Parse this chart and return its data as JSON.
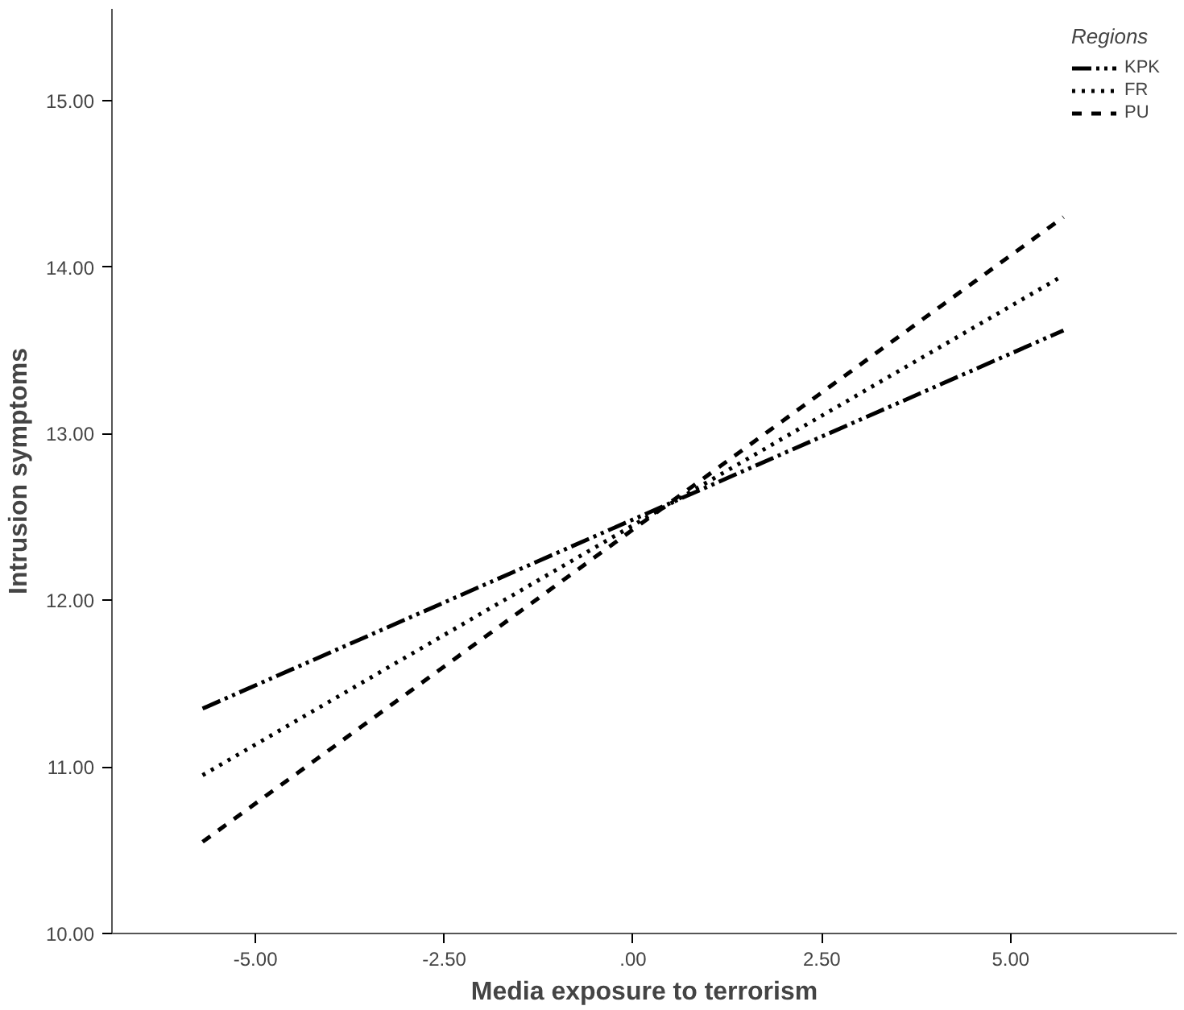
{
  "chart_data": {
    "type": "line",
    "xlabel": "Media exposure to terrorism",
    "ylabel": "Intrusion symptoms",
    "legend_title": "Regions",
    "legend": "top right",
    "x": [
      -5.7,
      5.7
    ],
    "series": [
      {
        "name": "KPK",
        "color": "#000000",
        "values": [
          11.35,
          13.62
        ],
        "line_style": "dashdot"
      },
      {
        "name": "FR",
        "color": "#000000",
        "values": [
          10.95,
          13.95
        ],
        "line_style": "dotted"
      },
      {
        "name": "PU",
        "color": "#000000",
        "values": [
          10.55,
          14.3
        ],
        "line_style": "dashed"
      }
    ],
    "xlim": [
      -6.9,
      7.2
    ],
    "ylim": [
      10,
      15.55
    ],
    "xticks": [
      {
        "value": -5,
        "label": "-5.00"
      },
      {
        "value": -2.5,
        "label": "-2.50"
      },
      {
        "value": 0,
        "label": ".00"
      },
      {
        "value": 2.5,
        "label": "2.50"
      },
      {
        "value": 5,
        "label": "5.00"
      }
    ],
    "yticks": [
      {
        "value": 10,
        "label": "10.00"
      },
      {
        "value": 11,
        "label": "11.00"
      },
      {
        "value": 12,
        "label": "12.00"
      },
      {
        "value": 13,
        "label": "13.00"
      },
      {
        "value": 14,
        "label": "14.00"
      },
      {
        "value": 15,
        "label": "15.00"
      }
    ],
    "grid": false,
    "marker": "none"
  }
}
